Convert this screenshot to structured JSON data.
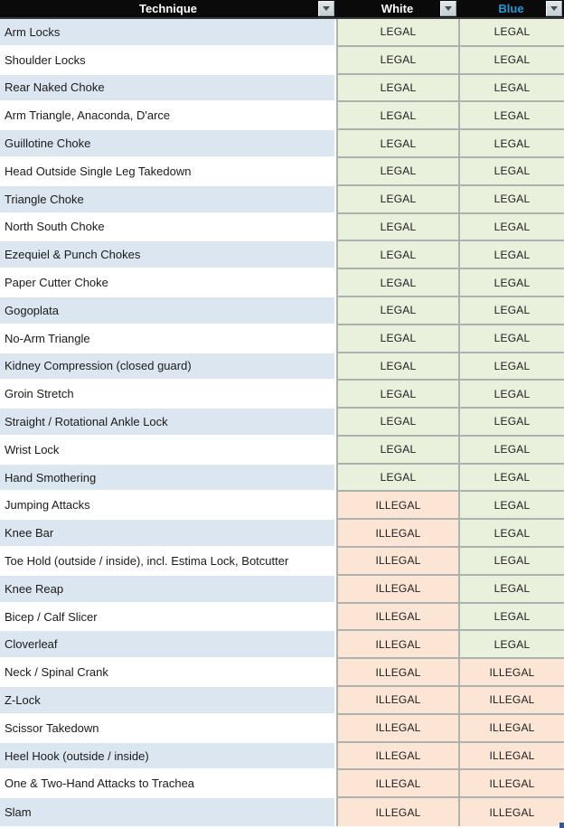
{
  "header": {
    "columns": [
      {
        "label": "Technique"
      },
      {
        "label": "White"
      },
      {
        "label": "Blue"
      }
    ],
    "filter_icon": "filter-dropdown-triangle"
  },
  "legend": {
    "legal_label": "LEGAL",
    "illegal_label": "ILLEGAL"
  },
  "colors": {
    "header_bg": "#0a0a0a",
    "header_text": "#ffffff",
    "blue_header_text": "#1f9ad6",
    "row_alt_bg": "#dce6f1",
    "legal_bg": "#e9f0db",
    "illegal_bg": "#fce5d4",
    "gridline": "#aeb2af",
    "fill_handle": "#2d5a9e"
  },
  "rows": [
    {
      "technique": "Arm Locks",
      "white": "LEGAL",
      "blue": "LEGAL"
    },
    {
      "technique": "Shoulder Locks",
      "white": "LEGAL",
      "blue": "LEGAL"
    },
    {
      "technique": "Rear Naked Choke",
      "white": "LEGAL",
      "blue": "LEGAL"
    },
    {
      "technique": "Arm Triangle, Anaconda, D'arce",
      "white": "LEGAL",
      "blue": "LEGAL"
    },
    {
      "technique": "Guillotine Choke",
      "white": "LEGAL",
      "blue": "LEGAL"
    },
    {
      "technique": "Head Outside Single Leg Takedown",
      "white": "LEGAL",
      "blue": "LEGAL"
    },
    {
      "technique": "Triangle Choke",
      "white": "LEGAL",
      "blue": "LEGAL"
    },
    {
      "technique": "North South Choke",
      "white": "LEGAL",
      "blue": "LEGAL"
    },
    {
      "technique": "Ezequiel & Punch Chokes",
      "white": "LEGAL",
      "blue": "LEGAL"
    },
    {
      "technique": "Paper Cutter Choke",
      "white": "LEGAL",
      "blue": "LEGAL"
    },
    {
      "technique": "Gogoplata",
      "white": "LEGAL",
      "blue": "LEGAL"
    },
    {
      "technique": "No-Arm Triangle",
      "white": "LEGAL",
      "blue": "LEGAL"
    },
    {
      "technique": "Kidney Compression (closed guard)",
      "white": "LEGAL",
      "blue": "LEGAL"
    },
    {
      "technique": "Groin Stretch",
      "white": "LEGAL",
      "blue": "LEGAL"
    },
    {
      "technique": "Straight / Rotational Ankle Lock",
      "white": "LEGAL",
      "blue": "LEGAL"
    },
    {
      "technique": "Wrist Lock",
      "white": "LEGAL",
      "blue": "LEGAL"
    },
    {
      "technique": "Hand Smothering",
      "white": "LEGAL",
      "blue": "LEGAL"
    },
    {
      "technique": "Jumping Attacks",
      "white": "ILLEGAL",
      "blue": "LEGAL"
    },
    {
      "technique": "Knee Bar",
      "white": "ILLEGAL",
      "blue": "LEGAL"
    },
    {
      "technique": "Toe Hold (outside / inside), incl. Estima Lock, Botcutter",
      "white": "ILLEGAL",
      "blue": "LEGAL"
    },
    {
      "technique": "Knee Reap",
      "white": "ILLEGAL",
      "blue": "LEGAL"
    },
    {
      "technique": "Bicep / Calf Slicer",
      "white": "ILLEGAL",
      "blue": "LEGAL"
    },
    {
      "technique": "Cloverleaf",
      "white": "ILLEGAL",
      "blue": "LEGAL"
    },
    {
      "technique": "Neck / Spinal Crank",
      "white": "ILLEGAL",
      "blue": "ILLEGAL"
    },
    {
      "technique": "Z-Lock",
      "white": "ILLEGAL",
      "blue": "ILLEGAL"
    },
    {
      "technique": "Scissor Takedown",
      "white": "ILLEGAL",
      "blue": "ILLEGAL"
    },
    {
      "technique": "Heel Hook (outside / inside)",
      "white": "ILLEGAL",
      "blue": "ILLEGAL"
    },
    {
      "technique": "One & Two-Hand Attacks to Trachea",
      "white": "ILLEGAL",
      "blue": "ILLEGAL"
    },
    {
      "technique": "Slam",
      "white": "ILLEGAL",
      "blue": "ILLEGAL"
    }
  ]
}
